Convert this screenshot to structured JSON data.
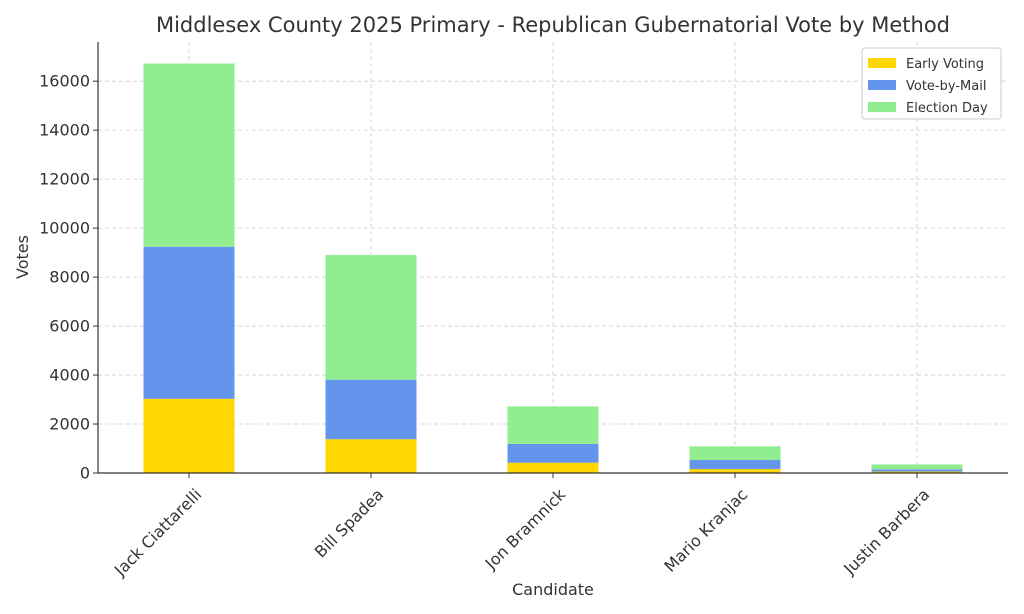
{
  "chart_data": {
    "type": "bar",
    "stacked": true,
    "title": "Middlesex County 2025 Primary - Republican Gubernatorial Vote by Method",
    "xlabel": "Candidate",
    "ylabel": "Votes",
    "categories": [
      "Jack Ciattarelli",
      "Bill Spadea",
      "Jon Bramnick",
      "Mario Kranjac",
      "Justin Barbera"
    ],
    "series": [
      {
        "name": "Early Voting",
        "color": "#FFD700",
        "values": [
          3030,
          1380,
          420,
          160,
          60
        ]
      },
      {
        "name": "Vote-by-Mail",
        "color": "#6495ED",
        "values": [
          6210,
          2430,
          770,
          370,
          90
        ]
      },
      {
        "name": "Election Day",
        "color": "#90EE90",
        "values": [
          7480,
          5090,
          1530,
          560,
          200
        ]
      }
    ],
    "yticks": [
      0,
      2000,
      4000,
      6000,
      8000,
      10000,
      12000,
      14000,
      16000
    ],
    "ylim": [
      0,
      17600
    ],
    "grid": true,
    "legend_position": "top-right"
  }
}
